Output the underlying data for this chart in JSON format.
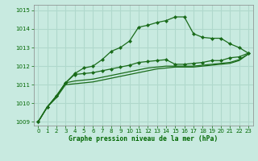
{
  "bg_color": "#c8eae0",
  "grid_color": "#b0d8cc",
  "line_color": "#1a6b1a",
  "marker_size": 2.5,
  "xlabel": "Graphe pression niveau de la mer (hPa)",
  "xlabel_color": "#006600",
  "tick_color": "#006600",
  "ylim": [
    1008.8,
    1015.3
  ],
  "xlim": [
    -0.5,
    23.5
  ],
  "yticks": [
    1009,
    1010,
    1011,
    1012,
    1013,
    1014,
    1015
  ],
  "xticks": [
    0,
    1,
    2,
    3,
    4,
    5,
    6,
    7,
    8,
    9,
    10,
    11,
    12,
    13,
    14,
    15,
    16,
    17,
    18,
    19,
    20,
    21,
    22,
    23
  ],
  "s1": [
    1009.0,
    1009.8,
    1010.4,
    1011.1,
    1011.6,
    1011.9,
    1012.0,
    1012.35,
    1012.8,
    1013.0,
    1013.35,
    1014.1,
    1014.2,
    1014.35,
    1014.45,
    1014.65,
    1014.65,
    1013.75,
    1013.55,
    1013.5,
    1013.5,
    1013.2,
    1013.0,
    1012.7
  ],
  "s2": [
    1009.0,
    1009.8,
    1010.4,
    1011.1,
    1011.55,
    1011.6,
    1011.65,
    1011.75,
    1011.85,
    1011.95,
    1012.05,
    1012.2,
    1012.25,
    1012.3,
    1012.35,
    1012.1,
    1012.1,
    1012.15,
    1012.2,
    1012.3,
    1012.3,
    1012.45,
    1012.5,
    1012.7
  ],
  "s3": [
    1009.0,
    1009.8,
    1010.35,
    1011.1,
    1011.2,
    1011.25,
    1011.3,
    1011.4,
    1011.5,
    1011.6,
    1011.7,
    1011.8,
    1011.9,
    1011.95,
    1012.0,
    1012.0,
    1012.0,
    1012.0,
    1012.05,
    1012.1,
    1012.15,
    1012.2,
    1012.35,
    1012.65
  ],
  "s4": [
    1009.0,
    1009.8,
    1010.3,
    1011.0,
    1011.05,
    1011.1,
    1011.15,
    1011.25,
    1011.35,
    1011.45,
    1011.55,
    1011.65,
    1011.75,
    1011.85,
    1011.9,
    1011.95,
    1011.95,
    1011.95,
    1012.0,
    1012.05,
    1012.1,
    1012.15,
    1012.3,
    1012.65
  ]
}
